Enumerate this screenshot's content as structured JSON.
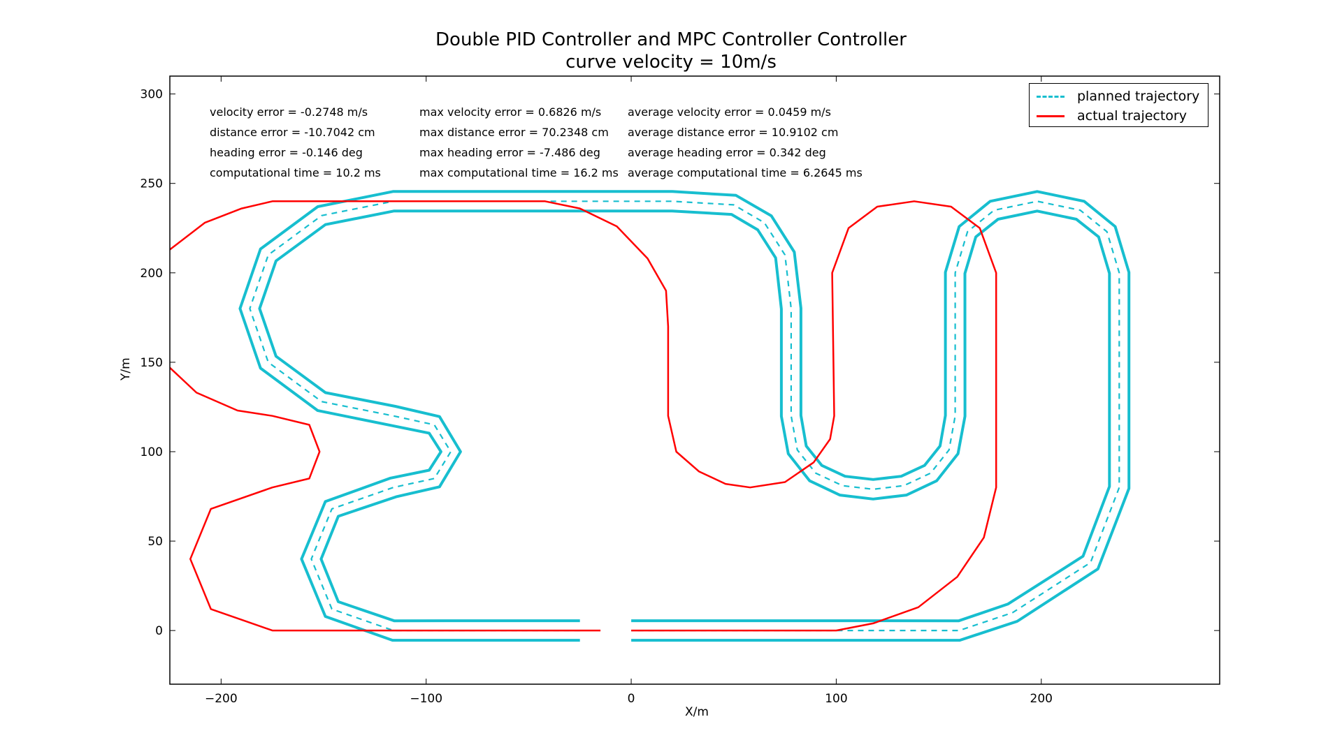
{
  "chart_data": {
    "type": "line",
    "title": "Double PID Controller and MPC Controller Controller",
    "subtitle": "curve velocity = 10m/s",
    "xlabel": "X/m",
    "ylabel": "Y/m",
    "xlim": [
      -225,
      287
    ],
    "ylim": [
      -30,
      310
    ],
    "xticks": [
      -200,
      -100,
      0,
      100,
      200
    ],
    "yticks": [
      0,
      50,
      100,
      150,
      200,
      250,
      300
    ],
    "grid": false,
    "legend_position": "top-right",
    "series": [
      {
        "name": "planned trajectory",
        "style": "dashed",
        "color": "#17becf",
        "points": [
          [
            -25,
            0
          ],
          [
            -116,
            0
          ],
          [
            -146,
            12
          ],
          [
            -156,
            40
          ],
          [
            -146,
            68
          ],
          [
            -116,
            80
          ],
          [
            -96,
            85
          ],
          [
            -88,
            100
          ],
          [
            -96,
            115
          ],
          [
            -116,
            120
          ],
          [
            -151,
            128
          ],
          [
            -177,
            150
          ],
          [
            -186,
            180
          ],
          [
            -177,
            210
          ],
          [
            -151,
            232
          ],
          [
            -116,
            240
          ],
          [
            20,
            240
          ],
          [
            50,
            238
          ],
          [
            65,
            228
          ],
          [
            75,
            210
          ],
          [
            78,
            180
          ],
          [
            78,
            120
          ],
          [
            81,
            101
          ],
          [
            90,
            88
          ],
          [
            103,
            81
          ],
          [
            118,
            79
          ],
          [
            133,
            81
          ],
          [
            146,
            88
          ],
          [
            155,
            101
          ],
          [
            158,
            120
          ],
          [
            158,
            200
          ],
          [
            164,
            223
          ],
          [
            177,
            235
          ],
          [
            198,
            240
          ],
          [
            219,
            235
          ],
          [
            232,
            223
          ],
          [
            238,
            200
          ],
          [
            238,
            80
          ],
          [
            224,
            38
          ],
          [
            186,
            10
          ],
          [
            160,
            0
          ],
          [
            0,
            0
          ]
        ]
      },
      {
        "name": "actual trajectory",
        "style": "solid",
        "color": "#ff0000",
        "points": [
          [
            -225,
            213
          ],
          [
            -208,
            228
          ],
          [
            -190,
            236
          ],
          [
            -175,
            240
          ],
          [
            -42,
            240
          ],
          [
            -25,
            236
          ],
          [
            -7,
            226
          ],
          [
            8,
            208
          ],
          [
            17,
            190
          ],
          [
            18,
            170
          ],
          [
            18,
            120
          ],
          [
            22,
            100
          ],
          [
            33,
            89
          ],
          [
            46,
            82
          ],
          [
            58,
            80
          ],
          [
            75,
            83
          ],
          [
            89,
            94
          ],
          [
            97,
            107
          ],
          [
            99,
            120
          ],
          [
            98,
            200
          ],
          [
            106,
            225
          ],
          [
            120,
            237
          ],
          [
            138,
            240
          ],
          [
            156,
            237
          ],
          [
            170,
            225
          ],
          [
            178,
            200
          ],
          [
            178,
            80
          ],
          [
            172,
            52
          ],
          [
            159,
            30
          ],
          [
            140,
            13
          ],
          [
            118,
            4
          ],
          [
            100,
            0
          ],
          [
            0,
            0
          ],
          null,
          [
            -15,
            0
          ],
          [
            -175,
            0
          ],
          [
            -205,
            12
          ],
          [
            -215,
            40
          ],
          [
            -205,
            68
          ],
          [
            -175,
            80
          ],
          [
            -157,
            85
          ],
          [
            -152,
            100
          ],
          [
            -157,
            115
          ],
          [
            -175,
            120
          ],
          [
            -192,
            123
          ],
          [
            -212,
            133
          ],
          [
            -225,
            147
          ]
        ]
      }
    ],
    "track_edges_color": "#17becf",
    "annotations": [
      [
        "velocity error = -0.2748 m/s",
        "max velocity error = 0.6826 m/s",
        "average velocity error = 0.0459 m/s"
      ],
      [
        "distance error = -10.7042 cm",
        "max distance error = 70.2348 cm",
        "average distance error = 10.9102 cm"
      ],
      [
        "heading error = -0.146 deg",
        "max heading error = -7.486 deg",
        "average heading error = 0.342 deg"
      ],
      [
        "computational time = 10.2 ms",
        "max computational time = 16.2 ms",
        "average computational time = 6.2645 ms"
      ]
    ]
  }
}
